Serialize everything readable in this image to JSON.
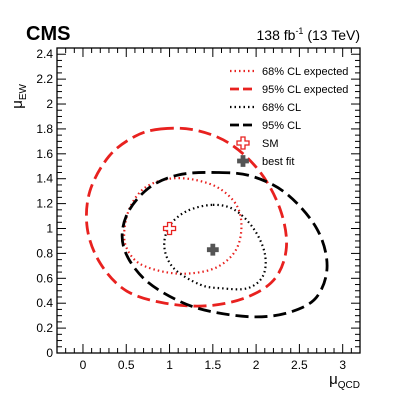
{
  "chart_data": {
    "type": "contour",
    "title": "CMS",
    "subtitle_lumi": "138 fb",
    "subtitle_lumi_exp": "-1",
    "subtitle_energy": " (13 TeV)",
    "xlabel_main": "μ",
    "xlabel_sub": "QCD",
    "ylabel_main": "μ",
    "ylabel_sub": "EW",
    "xlim": [
      -0.3,
      3.2
    ],
    "ylim": [
      0,
      2.45
    ],
    "xticks": [
      0,
      0.5,
      1,
      1.5,
      2,
      2.5,
      3
    ],
    "xtick_labels": [
      "0",
      "0.5",
      "1",
      "1.5",
      "2",
      "2.5",
      "3"
    ],
    "yticks": [
      0,
      0.2,
      0.4,
      0.6,
      0.8,
      1.0,
      1.2,
      1.4,
      1.6,
      1.8,
      2.0,
      2.2,
      2.4
    ],
    "ytick_labels": [
      "0",
      "0.2",
      "0.4",
      "0.6",
      "0.8",
      "1",
      "1.2",
      "1.4",
      "1.6",
      "1.8",
      "2",
      "2.2",
      "2.4"
    ],
    "legend": {
      "placement": "top-right",
      "entries": [
        {
          "label": "68% CL expected",
          "color": "#e8211f",
          "style": "dotted"
        },
        {
          "label": "95% CL expected",
          "color": "#e8211f",
          "style": "dashed"
        },
        {
          "label": "68% CL",
          "color": "#000000",
          "style": "dotted"
        },
        {
          "label": "95% CL",
          "color": "#000000",
          "style": "dashed"
        },
        {
          "label": "SM",
          "color": "#e8211f",
          "style": "open-cross"
        },
        {
          "label": "best fit",
          "color": "#555555",
          "style": "filled-cross"
        }
      ]
    },
    "contours": [
      {
        "label": "68% CL expected",
        "points": [
          [
            1.0,
            1.4
          ],
          [
            1.3,
            1.39
          ],
          [
            1.58,
            1.32
          ],
          [
            1.78,
            1.18
          ],
          [
            1.83,
            1.0
          ],
          [
            1.76,
            0.82
          ],
          [
            1.55,
            0.69
          ],
          [
            1.25,
            0.64
          ],
          [
            0.95,
            0.65
          ],
          [
            0.65,
            0.72
          ],
          [
            0.5,
            0.85
          ],
          [
            0.48,
            1.0
          ],
          [
            0.55,
            1.18
          ],
          [
            0.72,
            1.33
          ]
        ]
      },
      {
        "label": "95% CL expected",
        "points": [
          [
            0.9,
            1.8
          ],
          [
            1.3,
            1.79
          ],
          [
            1.7,
            1.68
          ],
          [
            2.05,
            1.45
          ],
          [
            2.28,
            1.15
          ],
          [
            2.35,
            0.85
          ],
          [
            2.22,
            0.6
          ],
          [
            1.9,
            0.45
          ],
          [
            1.45,
            0.38
          ],
          [
            0.95,
            0.4
          ],
          [
            0.5,
            0.5
          ],
          [
            0.2,
            0.72
          ],
          [
            0.05,
            1.0
          ],
          [
            0.08,
            1.3
          ],
          [
            0.3,
            1.58
          ],
          [
            0.6,
            1.74
          ]
        ]
      },
      {
        "label": "68% CL",
        "points": [
          [
            1.5,
            1.19
          ],
          [
            1.75,
            1.15
          ],
          [
            1.97,
            1.0
          ],
          [
            2.1,
            0.8
          ],
          [
            2.08,
            0.62
          ],
          [
            1.9,
            0.52
          ],
          [
            1.6,
            0.52
          ],
          [
            1.35,
            0.55
          ],
          [
            1.05,
            0.68
          ],
          [
            0.94,
            0.85
          ],
          [
            1.0,
            1.02
          ],
          [
            1.2,
            1.14
          ]
        ]
      },
      {
        "label": "95% CL",
        "points": [
          [
            1.55,
            1.45
          ],
          [
            1.95,
            1.42
          ],
          [
            2.35,
            1.28
          ],
          [
            2.7,
            1.0
          ],
          [
            2.82,
            0.7
          ],
          [
            2.7,
            0.45
          ],
          [
            2.4,
            0.33
          ],
          [
            2.0,
            0.29
          ],
          [
            1.5,
            0.33
          ],
          [
            1.1,
            0.42
          ],
          [
            0.7,
            0.6
          ],
          [
            0.47,
            0.85
          ],
          [
            0.5,
            1.1
          ],
          [
            0.75,
            1.32
          ],
          [
            1.1,
            1.43
          ]
        ]
      }
    ],
    "sm_point": [
      1.0,
      1.0
    ],
    "best_fit_point": [
      1.5,
      0.83
    ]
  }
}
